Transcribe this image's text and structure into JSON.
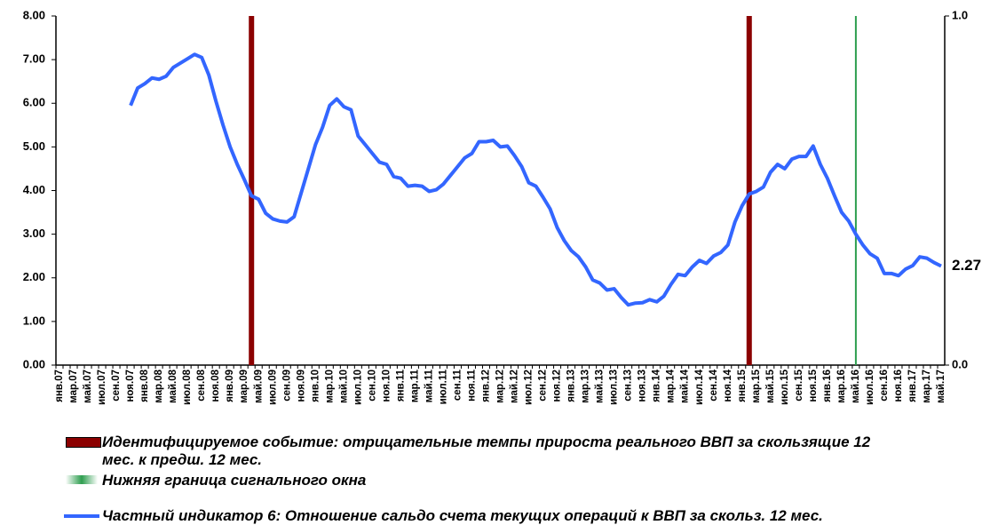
{
  "chart_data": {
    "type": "line",
    "categories": [
      "янв.07",
      null,
      "мар.07",
      null,
      "май.07",
      null,
      "июл.07",
      null,
      "сен.07",
      null,
      "ноя.07",
      null,
      "янв.08",
      null,
      "мар.08",
      null,
      "май.08",
      null,
      "июл.08",
      null,
      "сен.08",
      null,
      "ноя.08",
      null,
      "янв.09",
      null,
      "мар.09",
      null,
      "май.09",
      null,
      "июл.09",
      null,
      "сен.09",
      null,
      "ноя.09",
      null,
      "янв.10",
      null,
      "мар.10",
      null,
      "май.10",
      null,
      "июл.10",
      null,
      "сен.10",
      null,
      "ноя.10",
      null,
      "янв.11",
      null,
      "мар.11",
      null,
      "май.11",
      null,
      "июл.11",
      null,
      "сен.11",
      null,
      "ноя.11",
      null,
      "янв.12",
      null,
      "мар.12",
      null,
      "май.12",
      null,
      "июл.12",
      null,
      "сен.12",
      null,
      "ноя.12",
      null,
      "янв.13",
      null,
      "мар.13",
      null,
      "май.13",
      null,
      "июл.13",
      null,
      "сен.13",
      null,
      "ноя.13",
      null,
      "янв.14",
      null,
      "мар.14",
      null,
      "май.14",
      null,
      "июл.14",
      null,
      "сен.14",
      null,
      "ноя.14",
      null,
      "янв.15",
      null,
      "мар.15",
      null,
      "май.15",
      null,
      "июл.15",
      null,
      "сен.15",
      null,
      "ноя.15",
      null,
      "янв.16",
      null,
      "мар.16",
      null,
      "май.16",
      null,
      "июл.16",
      null,
      "сен.16",
      null,
      "ноя.16",
      null,
      "янв.17",
      null,
      "мар.17",
      null,
      "май.17"
    ],
    "series": [
      {
        "name": "Идентифицируемое событие: отрицательные темпы прироста реального ВВП за скользящие 12 мес. к предш. 12 мес.",
        "type": "bar",
        "axis": "y2",
        "color": "#8b0000",
        "values": [
          null,
          null,
          null,
          null,
          null,
          null,
          null,
          null,
          null,
          null,
          null,
          null,
          null,
          null,
          null,
          null,
          null,
          null,
          null,
          null,
          null,
          null,
          null,
          null,
          null,
          null,
          null,
          1,
          null,
          null,
          null,
          null,
          null,
          null,
          null,
          null,
          null,
          null,
          null,
          null,
          null,
          null,
          null,
          null,
          null,
          null,
          null,
          null,
          null,
          null,
          null,
          null,
          null,
          null,
          null,
          null,
          null,
          null,
          null,
          null,
          null,
          null,
          null,
          null,
          null,
          null,
          null,
          null,
          null,
          null,
          null,
          null,
          null,
          null,
          null,
          null,
          null,
          null,
          null,
          null,
          null,
          null,
          null,
          null,
          null,
          null,
          null,
          null,
          null,
          null,
          null,
          null,
          null,
          null,
          null,
          null,
          null,
          1,
          null,
          null,
          null,
          null,
          null,
          null,
          null,
          null,
          null,
          null,
          null,
          null,
          null,
          null,
          null,
          null,
          null,
          null,
          null,
          null,
          null,
          null,
          null,
          null,
          null,
          null,
          null
        ]
      },
      {
        "name": "Нижняя граница сигнального окна",
        "type": "bar",
        "axis": "y2",
        "color": "#2e9e4f",
        "values": [
          null,
          null,
          null,
          null,
          null,
          null,
          null,
          null,
          null,
          null,
          null,
          null,
          null,
          null,
          null,
          null,
          null,
          null,
          null,
          null,
          null,
          null,
          null,
          null,
          null,
          null,
          null,
          null,
          null,
          null,
          null,
          null,
          null,
          null,
          null,
          null,
          null,
          null,
          null,
          null,
          null,
          null,
          null,
          null,
          null,
          null,
          null,
          null,
          null,
          null,
          null,
          null,
          null,
          null,
          null,
          null,
          null,
          null,
          null,
          null,
          null,
          null,
          null,
          null,
          null,
          null,
          null,
          null,
          null,
          null,
          null,
          null,
          null,
          null,
          null,
          null,
          null,
          null,
          null,
          null,
          null,
          null,
          null,
          null,
          null,
          null,
          null,
          null,
          null,
          null,
          null,
          null,
          null,
          null,
          null,
          null,
          null,
          null,
          null,
          null,
          null,
          null,
          null,
          null,
          null,
          null,
          null,
          null,
          null,
          null,
          null,
          null,
          1,
          null,
          null,
          null,
          null,
          null,
          null,
          null,
          null,
          null,
          null,
          null,
          null
        ]
      },
      {
        "name": "Частный индикатор 6: Отношение сальдо счета текущих операций к ВВП за скольз. 12 мес.",
        "type": "line",
        "color": "#3366ff",
        "data_labels": "last",
        "values": [
          null,
          null,
          null,
          null,
          null,
          null,
          null,
          null,
          null,
          null,
          5.95,
          6.35,
          6.45,
          6.58,
          6.55,
          6.62,
          6.82,
          6.92,
          7.02,
          7.12,
          7.05,
          6.65,
          6.05,
          5.5,
          5.0,
          4.6,
          4.25,
          3.88,
          3.8,
          3.48,
          3.35,
          3.3,
          3.28,
          3.4,
          3.95,
          4.5,
          5.05,
          5.45,
          5.95,
          6.1,
          5.92,
          5.85,
          5.25,
          5.05,
          4.85,
          4.65,
          4.6,
          4.32,
          4.28,
          4.1,
          4.12,
          4.1,
          3.98,
          4.02,
          4.15,
          4.35,
          4.55,
          4.75,
          4.85,
          5.12,
          5.12,
          5.15,
          5.0,
          5.02,
          4.8,
          4.55,
          4.18,
          4.1,
          3.85,
          3.58,
          3.15,
          2.85,
          2.62,
          2.48,
          2.25,
          1.95,
          1.88,
          1.72,
          1.75,
          1.55,
          1.38,
          1.42,
          1.43,
          1.5,
          1.45,
          1.58,
          1.85,
          2.08,
          2.05,
          2.25,
          2.4,
          2.33,
          2.5,
          2.58,
          2.75,
          3.28,
          3.65,
          3.92,
          3.98,
          4.08,
          4.42,
          4.6,
          4.5,
          4.72,
          4.78,
          4.78,
          5.02,
          4.6,
          4.28,
          3.88,
          3.5,
          3.3,
          3.0,
          2.75,
          2.55,
          2.45,
          2.1,
          2.1,
          2.05,
          2.2,
          2.28,
          2.48,
          2.45,
          2.35,
          2.27
        ]
      }
    ],
    "ylim": [
      0,
      8
    ],
    "yticks": [
      {
        "value": 0,
        "label": "0.00"
      },
      {
        "value": 1,
        "label": "1.00"
      },
      {
        "value": 2,
        "label": "2.00"
      },
      {
        "value": 3,
        "label": "3.00"
      },
      {
        "value": 4,
        "label": "4.00"
      },
      {
        "value": 5,
        "label": "5.00"
      },
      {
        "value": 6,
        "label": "6.00"
      },
      {
        "value": 7,
        "label": "7.00"
      },
      {
        "value": 8,
        "label": "8.00"
      }
    ],
    "y2lim": [
      0,
      1
    ],
    "y2ticks": [
      {
        "value": 0,
        "label": "0.0"
      },
      {
        "value": 1,
        "label": "1.0"
      }
    ],
    "grid": false
  }
}
